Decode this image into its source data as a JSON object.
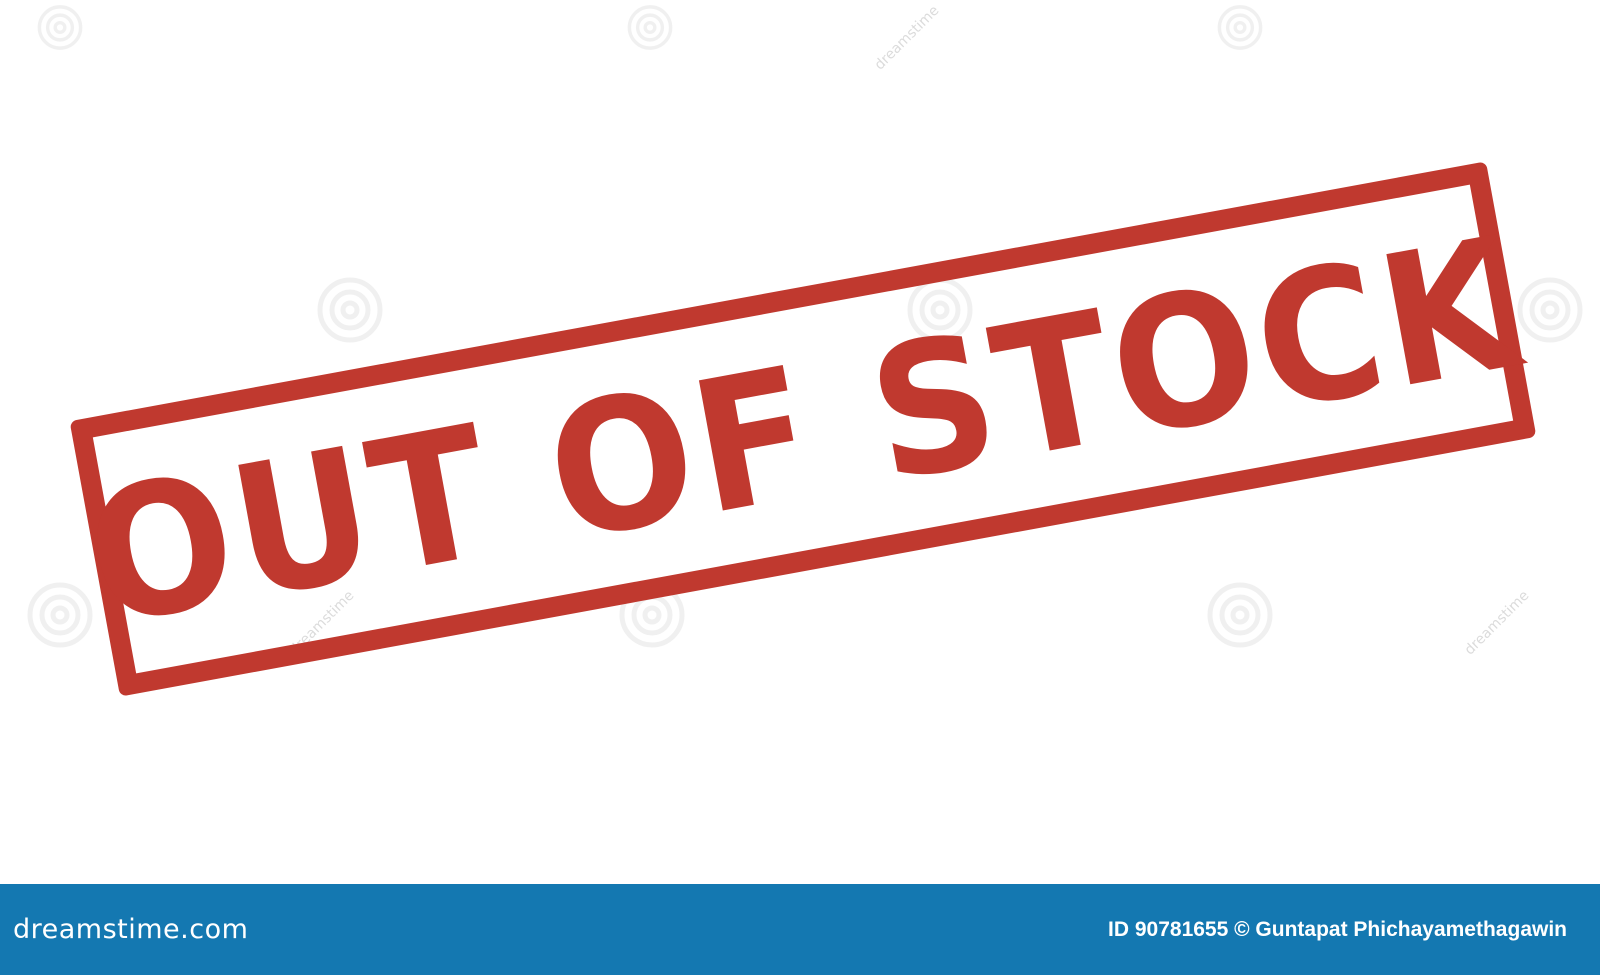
{
  "stamp": {
    "text": "OUT OF STOCK",
    "color": "#c0392f"
  },
  "footer": {
    "logo_text": "dreamstime.com",
    "credit_text": "ID 90781655 © Guntapat Phichayamethagawin",
    "background_color": "#1478b1",
    "text_color": "#ffffff"
  },
  "watermark": {
    "icon": "dreamstime-spiral-icon",
    "text": "dreamstime"
  }
}
